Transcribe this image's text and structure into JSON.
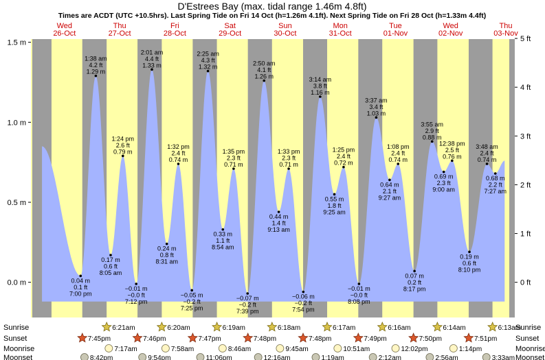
{
  "title": "D'Estrees Bay (max. tidal range 1.46m 4.8ft)",
  "subtitle": "Times are ACDT (UTC +10.5hrs). Last Spring Tide on Fri 14 Oct (h=1.26m 4.1ft). Next Spring Tide on Fri 28 Oct (h=1.33m 4.4ft)",
  "colors": {
    "day": "#ffffa8",
    "night": "#9c9c9c",
    "water": "#a4b4ff",
    "day_label": "#cc0000",
    "text": "#000000"
  },
  "days": [
    {
      "dow": "Wed",
      "date": "26-Oct"
    },
    {
      "dow": "Thu",
      "date": "27-Oct"
    },
    {
      "dow": "Fri",
      "date": "28-Oct"
    },
    {
      "dow": "Sat",
      "date": "29-Oct"
    },
    {
      "dow": "Sun",
      "date": "30-Oct"
    },
    {
      "dow": "Mon",
      "date": "31-Oct"
    },
    {
      "dow": "Tue",
      "date": "01-Nov"
    },
    {
      "dow": "Wed",
      "date": "02-Nov"
    },
    {
      "dow": "Thu",
      "date": "03-Nov"
    }
  ],
  "chart_data": {
    "type": "area",
    "title": "D'Estrees Bay (max. tidal range 1.46m 4.8ft)",
    "ylabel_left": "m",
    "ylabel_right": "ft",
    "ylim_m": [
      -0.2,
      1.5
    ],
    "yticks_left": [
      "1.5 m",
      "1.0 m",
      "0.5 m",
      "0.0 m"
    ],
    "yticks_left_values": [
      1.5,
      1.0,
      0.5,
      0.0
    ],
    "yticks_right": [
      "5 ft",
      "4 ft",
      "3 ft",
      "2 ft",
      "1 ft",
      "0 ft"
    ],
    "yticks_right_values": [
      5,
      4,
      3,
      2,
      1,
      0
    ],
    "x_units": "hours since 26-Oct 00:00 ACDT",
    "tides": [
      {
        "t": 2.2,
        "h": 0.85,
        "labeled": false
      },
      {
        "t": 19.0,
        "h": 0.04,
        "labels": [
          "0.04 m",
          "0.1 ft",
          "7:00 pm"
        ]
      },
      {
        "t": 25.63,
        "h": 1.29,
        "labels": [
          "1:38 am",
          "4.2 ft",
          "1.29 m"
        ]
      },
      {
        "t": 32.08,
        "h": 0.17,
        "labels": [
          "0.17 m",
          "0.6 ft",
          "8:05 am"
        ]
      },
      {
        "t": 37.4,
        "h": 0.79,
        "labels": [
          "1:24 pm",
          "2.6 ft",
          "0.79 m"
        ]
      },
      {
        "t": 43.2,
        "h": -0.01,
        "labels": [
          "−0.01 m",
          "−0.0 ft",
          "7:12 pm"
        ]
      },
      {
        "t": 50.02,
        "h": 1.33,
        "labels": [
          "2:01 am",
          "4.4 ft",
          "1.33 m"
        ]
      },
      {
        "t": 56.52,
        "h": 0.24,
        "labels": [
          "0.24 m",
          "0.8 ft",
          "8:31 am"
        ]
      },
      {
        "t": 61.53,
        "h": 0.74,
        "labels": [
          "1:32 pm",
          "2.4 ft",
          "0.74 m"
        ]
      },
      {
        "t": 67.42,
        "h": -0.05,
        "labels": [
          "−0.05 m",
          "−0.2 ft",
          "7:25 pm"
        ]
      },
      {
        "t": 74.42,
        "h": 1.32,
        "labels": [
          "2:25 am",
          "4.3 ft",
          "1.32 m"
        ]
      },
      {
        "t": 80.9,
        "h": 0.33,
        "labels": [
          "0.33 m",
          "1.1 ft",
          "8:54 am"
        ]
      },
      {
        "t": 85.58,
        "h": 0.71,
        "labels": [
          "1:35 pm",
          "2.3 ft",
          "0.71 m"
        ]
      },
      {
        "t": 91.65,
        "h": -0.07,
        "labels": [
          "−0.07 m",
          "−0.2 ft",
          "7:39 pm"
        ]
      },
      {
        "t": 98.83,
        "h": 1.26,
        "labels": [
          "2:50 am",
          "4.1 ft",
          "1.26 m"
        ]
      },
      {
        "t": 105.22,
        "h": 0.44,
        "labels": [
          "0.44 m",
          "1.4 ft",
          "9:13 am"
        ]
      },
      {
        "t": 109.55,
        "h": 0.71,
        "labels": [
          "1:33 pm",
          "2.3 ft",
          "0.71 m"
        ]
      },
      {
        "t": 115.9,
        "h": -0.06,
        "labels": [
          "−0.06 m",
          "−0.2 ft",
          "7:54 pm"
        ]
      },
      {
        "t": 123.23,
        "h": 1.16,
        "labels": [
          "3:14 am",
          "3.8 ft",
          "1.16 m"
        ]
      },
      {
        "t": 129.42,
        "h": 0.55,
        "labels": [
          "0.55 m",
          "1.8 ft",
          "9:25 am"
        ]
      },
      {
        "t": 133.42,
        "h": 0.72,
        "labels": [
          "1:25 pm",
          "2.4 ft",
          "0.72 m"
        ]
      },
      {
        "t": 140.13,
        "h": -0.01,
        "labels": [
          "−0.01 m",
          "−0.0 ft",
          "8:08 pm"
        ]
      },
      {
        "t": 147.62,
        "h": 1.03,
        "labels": [
          "3:37 am",
          "3.4 ft",
          "1.03 m"
        ]
      },
      {
        "t": 153.45,
        "h": 0.64,
        "labels": [
          "0.64 m",
          "2.1 ft",
          "9:27 am"
        ]
      },
      {
        "t": 157.13,
        "h": 0.74,
        "labels": [
          "1:08 pm",
          "2.4 ft",
          "0.74 m"
        ]
      },
      {
        "t": 164.28,
        "h": 0.07,
        "labels": [
          "0.07 m",
          "0.2 ft",
          "8:17 pm"
        ]
      },
      {
        "t": 171.92,
        "h": 0.88,
        "labels": [
          "3:55 am",
          "2.9 ft",
          "0.88 m"
        ]
      },
      {
        "t": 177.0,
        "h": 0.69,
        "labels": [
          "0.69 m",
          "2.3 ft",
          "9:00 am"
        ]
      },
      {
        "t": 180.63,
        "h": 0.76,
        "labels": [
          "12:38 pm",
          "2.5 ft",
          "0.76 m"
        ]
      },
      {
        "t": 188.17,
        "h": 0.19,
        "labels": [
          "0.19 m",
          "0.6 ft",
          "8:10 pm"
        ]
      },
      {
        "t": 195.8,
        "h": 0.74,
        "labels": [
          "3:48 am",
          "2.4 ft",
          "0.74 m"
        ]
      },
      {
        "t": 199.45,
        "h": 0.68,
        "labels": [
          "0.68 m",
          "2.2 ft",
          "7:27 am"
        ]
      },
      {
        "t": 203.5,
        "h": 0.76,
        "labels": []
      }
    ],
    "night_bands": [
      [
        -2,
        6.35
      ],
      [
        19.75,
        30.33
      ],
      [
        43.77,
        54.32
      ],
      [
        67.78,
        78.3
      ],
      [
        91.78,
        102.28
      ],
      [
        115.8,
        126.27
      ],
      [
        139.82,
        150.25
      ],
      [
        163.83,
        174.22
      ],
      [
        187.85,
        198.2
      ]
    ],
    "x_range": [
      -2.6,
      205.5
    ]
  },
  "sun_moon": {
    "row_labels": [
      "Sunrise",
      "Sunset",
      "Moonrise",
      "Moonset"
    ],
    "sunrise": [
      {
        "t": 30.35,
        "label": "6:21am"
      },
      {
        "t": 54.33,
        "label": "6:20am"
      },
      {
        "t": 78.32,
        "label": "6:19am"
      },
      {
        "t": 102.3,
        "label": "6:18am"
      },
      {
        "t": 126.28,
        "label": "6:17am"
      },
      {
        "t": 150.27,
        "label": "6:16am"
      },
      {
        "t": 174.23,
        "label": "6:14am"
      },
      {
        "t": 198.22,
        "label": "6:13am"
      }
    ],
    "sunset": [
      {
        "t": 19.75,
        "label": "7:45pm"
      },
      {
        "t": 43.77,
        "label": "7:46pm"
      },
      {
        "t": 67.78,
        "label": "7:47pm"
      },
      {
        "t": 91.8,
        "label": "7:48pm"
      },
      {
        "t": 115.8,
        "label": "7:48pm"
      },
      {
        "t": 139.82,
        "label": "7:49pm"
      },
      {
        "t": 163.83,
        "label": "7:50pm"
      },
      {
        "t": 187.85,
        "label": "7:51pm"
      }
    ],
    "moonrise": [
      {
        "t": 31.28,
        "label": "7:17am"
      },
      {
        "t": 55.97,
        "label": "7:58am"
      },
      {
        "t": 80.77,
        "label": "8:46am"
      },
      {
        "t": 105.75,
        "label": "9:45am"
      },
      {
        "t": 130.85,
        "label": "10:51am"
      },
      {
        "t": 156.03,
        "label": "12:02pm"
      },
      {
        "t": 181.23,
        "label": "1:14pm"
      }
    ],
    "moonset": [
      {
        "t": 20.7,
        "label": "8:42pm"
      },
      {
        "t": 45.9,
        "label": "9:54pm"
      },
      {
        "t": 71.1,
        "label": "11:06pm"
      },
      {
        "t": 96.27,
        "label": "12:16am"
      },
      {
        "t": 121.32,
        "label": "1:19am"
      },
      {
        "t": 146.2,
        "label": "2:12am"
      },
      {
        "t": 170.93,
        "label": "2:56am"
      },
      {
        "t": 195.55,
        "label": "3:33am"
      }
    ]
  }
}
